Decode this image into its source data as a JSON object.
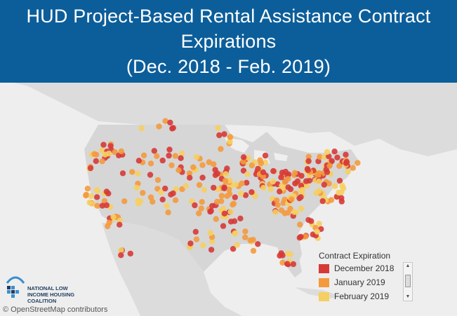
{
  "header": {
    "line1": "HUD Project-Based Rental Assistance Contract",
    "line2": "Expirations",
    "line3": "(Dec. 2018 - Feb. 2019)",
    "background": "#0c5e9a"
  },
  "map": {
    "basemap": "grey-light",
    "region": "United States",
    "land_color": "#dcdcdc",
    "water_color": "#f2f2f2"
  },
  "legend": {
    "title": "Contract Expiration",
    "items": [
      {
        "label": "December 2018",
        "color": "#d63a37"
      },
      {
        "label": "January 2019",
        "color": "#f49a3e"
      },
      {
        "label": "February 2019",
        "color": "#f6cf62"
      }
    ]
  },
  "logo": {
    "text": "NATIONAL LOW INCOME HOUSING COALITION",
    "icon": "house-icon"
  },
  "credit": "© OpenStreetMap contributors"
}
